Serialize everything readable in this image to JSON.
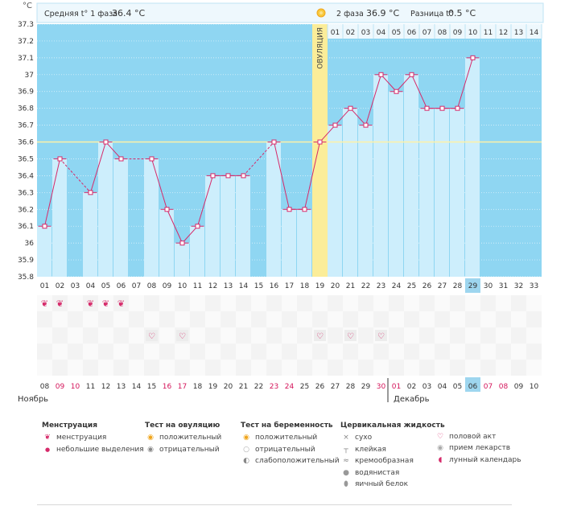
{
  "unit_label": "°C",
  "header": {
    "phase1_label": "Средняя t° 1 фаза",
    "phase1_value": "36.4 °C",
    "phase2_label": "2 фаза",
    "phase2_value": "36.9 °C",
    "diff_label": "Разница t°",
    "diff_value": "0.5 °C"
  },
  "ovulation_label": "ОВУЛЯЦИЯ",
  "colors": {
    "phase_bg": "#8fd6f2",
    "bar_fill": "#cdeefc",
    "line": "#d62a6a",
    "ovulation": "#fbed99",
    "header_bg": "#eef8fd",
    "coverline": "#fff2a6",
    "highlight": "#9ed6ef",
    "red_day": "#d4145a"
  },
  "chart_data": {
    "type": "bar",
    "title": "",
    "ylabel": "°C",
    "ylim": [
      35.8,
      37.3
    ],
    "yticks": [
      "35.8",
      "35.9",
      "36",
      "36.1",
      "36.2",
      "36.3",
      "36.4",
      "36.5",
      "36.6",
      "36.7",
      "36.8",
      "36.9",
      "37",
      "37.1",
      "37.2",
      "37.3"
    ],
    "coverline": 36.6,
    "ovulation_day": 19,
    "highlight_cycle_day": 29,
    "cycle_days": [
      "01",
      "02",
      "03",
      "04",
      "05",
      "06",
      "07",
      "08",
      "09",
      "10",
      "11",
      "12",
      "13",
      "14",
      "15",
      "16",
      "17",
      "18",
      "19",
      "20",
      "21",
      "22",
      "23",
      "24",
      "25",
      "26",
      "27",
      "28",
      "29",
      "30",
      "31",
      "32",
      "33"
    ],
    "phase2_days": [
      "01",
      "02",
      "03",
      "04",
      "05",
      "06",
      "07",
      "08",
      "09",
      "10",
      "11",
      "12",
      "13",
      "14"
    ],
    "temperatures": [
      36.1,
      36.5,
      null,
      36.3,
      36.6,
      36.5,
      null,
      36.5,
      36.2,
      36.0,
      36.1,
      36.4,
      36.4,
      36.4,
      null,
      36.6,
      36.2,
      36.2,
      36.6,
      36.7,
      36.8,
      36.7,
      37.0,
      36.9,
      37.0,
      36.8,
      36.8,
      36.8,
      37.1,
      null,
      null,
      null,
      null
    ],
    "calendar_dates": [
      "08",
      "09",
      "10",
      "11",
      "12",
      "13",
      "14",
      "15",
      "16",
      "17",
      "18",
      "19",
      "20",
      "21",
      "22",
      "23",
      "24",
      "25",
      "26",
      "27",
      "28",
      "29",
      "30",
      "01",
      "02",
      "03",
      "04",
      "05",
      "06",
      "07",
      "08",
      "09",
      "10"
    ],
    "red_dates_index": [
      1,
      2,
      8,
      9,
      15,
      16,
      22,
      23,
      29,
      30
    ],
    "month_nov": "Ноябрь",
    "month_dec": "Декабрь",
    "menstruation_days": [
      1,
      2,
      4,
      5,
      6
    ],
    "intercourse_days": [
      8,
      10,
      19,
      21,
      23
    ]
  },
  "legend": {
    "menstruation": {
      "title": "Менструация",
      "items": [
        {
          "icon": "drop-icon",
          "label": "менструация"
        },
        {
          "icon": "small-drop-icon",
          "label": "небольшие выделения"
        }
      ]
    },
    "ovulation_test": {
      "title": "Тест на овуляцию",
      "items": [
        {
          "icon": "sun-icon",
          "label": "положительный"
        },
        {
          "icon": "gray-circle-icon",
          "label": "отрицательный"
        }
      ]
    },
    "pregnancy_test": {
      "title": "Тест на беременность",
      "items": [
        {
          "icon": "sun-icon",
          "label": "положительный"
        },
        {
          "icon": "gray-circle-icon",
          "label": "отрицательный"
        },
        {
          "icon": "half-circle-icon",
          "label": "слабоположительный"
        }
      ]
    },
    "cervical_fluid": {
      "title": "Цервикальная жидкость",
      "items": [
        {
          "icon": "cross-icon",
          "label": "сухо"
        },
        {
          "icon": "t-icon",
          "label": "клейкая"
        },
        {
          "icon": "cream-icon",
          "label": "кремообразная"
        },
        {
          "icon": "water-drop-icon",
          "label": "водянистая"
        },
        {
          "icon": "egg-white-icon",
          "label": "яичный белок"
        }
      ]
    },
    "other": {
      "items": [
        {
          "icon": "heart-icon",
          "label": "половой акт"
        },
        {
          "icon": "pill-icon",
          "label": "прием лекарств"
        },
        {
          "icon": "moon-icon",
          "label": "лунный календарь"
        }
      ]
    }
  }
}
